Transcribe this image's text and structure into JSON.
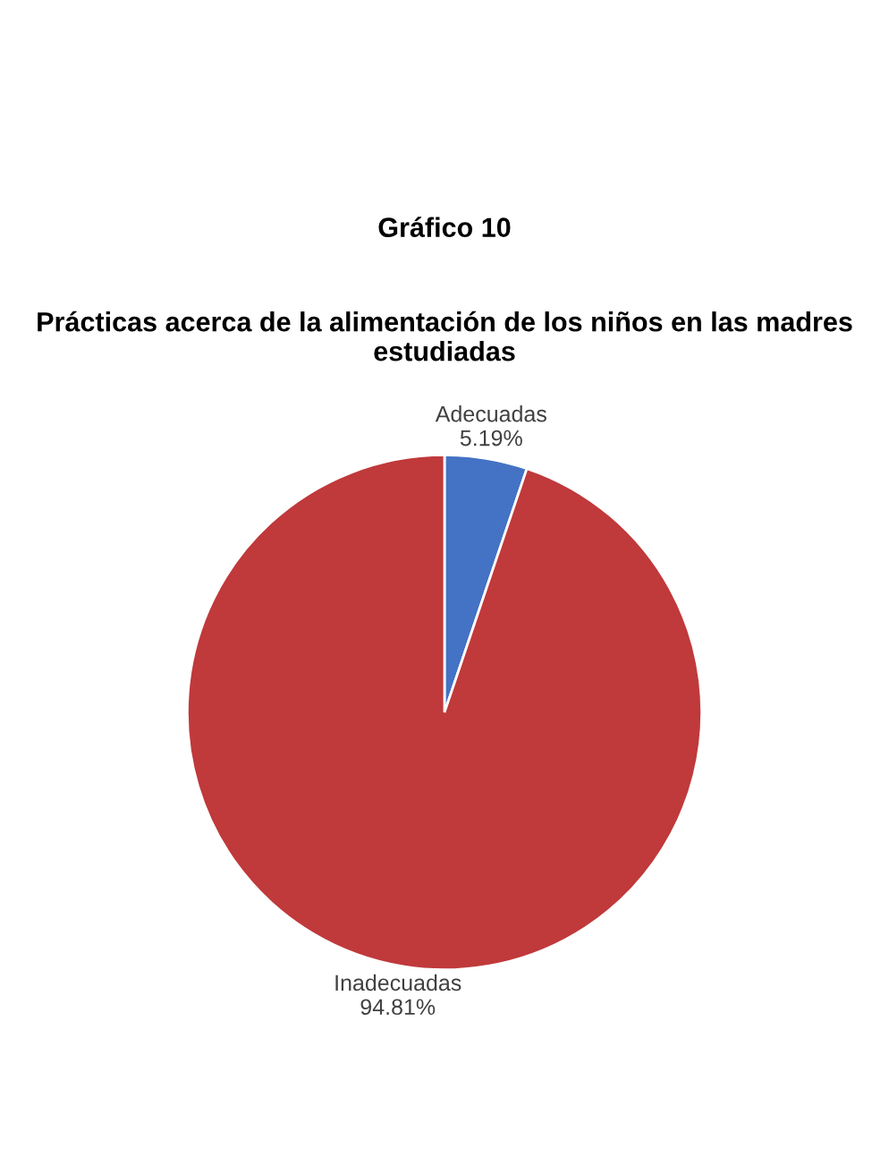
{
  "chart_data": {
    "type": "pie",
    "title": "Gráfico 10",
    "subtitle": "Prácticas acerca de la alimentación de los niños en las madres estudiadas",
    "categories": [
      "Adecuadas",
      "Inadecuadas"
    ],
    "values": [
      5.19,
      94.81
    ],
    "colors": [
      "#4472c4",
      "#c0393b"
    ],
    "value_labels": [
      "5.19%",
      "94.81%"
    ]
  }
}
